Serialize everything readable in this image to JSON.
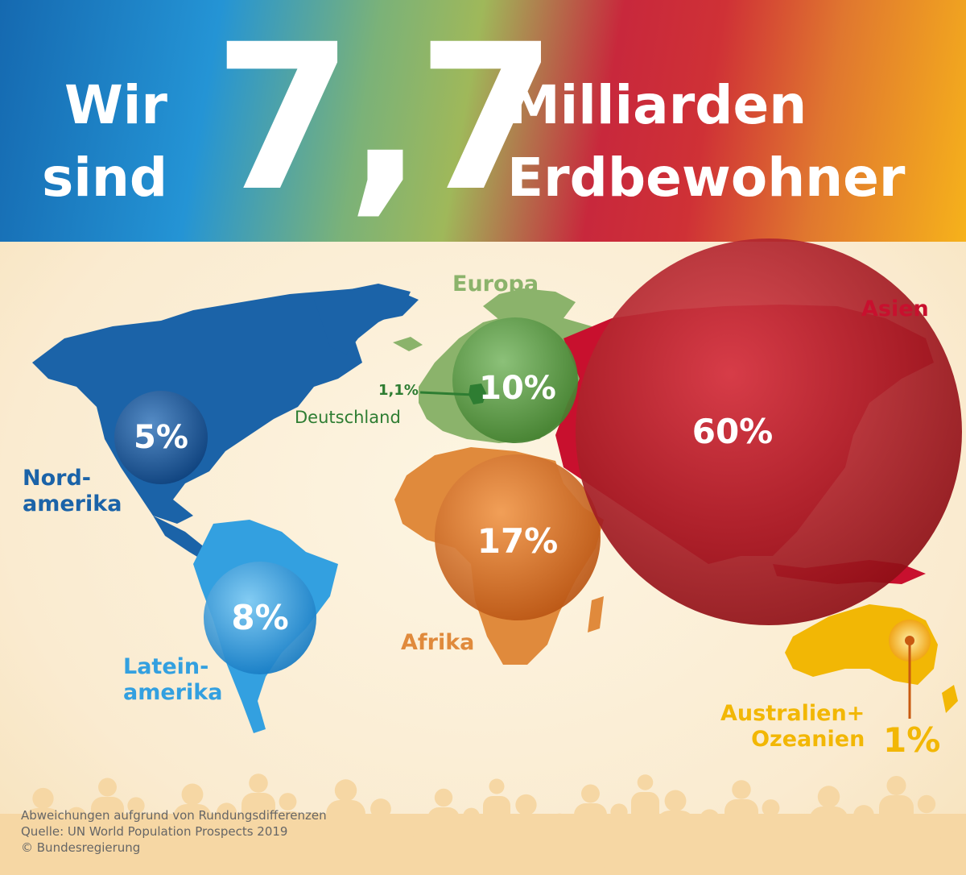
{
  "header": {
    "line1_left": "Wir",
    "line2_left": "sind",
    "big_number": "7,7",
    "line1_right": "Milliarden",
    "line2_right": "Erdbewohner"
  },
  "regions": {
    "nordamerika": {
      "label_line1": "Nord-",
      "label_line2": "amerika",
      "percent": "5%",
      "color": "#1b63a8"
    },
    "lateinamerika": {
      "label_line1": "Latein-",
      "label_line2": "amerika",
      "percent": "8%",
      "color": "#33a0e0"
    },
    "europa": {
      "label": "Europa",
      "percent": "10%",
      "color": "#8bb36b"
    },
    "deutschland": {
      "value": "1,1%",
      "label": "Deutschland",
      "color": "#2e7d32"
    },
    "afrika": {
      "label": "Afrika",
      "percent": "17%",
      "color": "#e08a3c"
    },
    "asien": {
      "label": "Asien",
      "percent": "60%",
      "color": "#c8102e"
    },
    "ozeanien": {
      "label_line1": "Australien+",
      "label_line2": "Ozeanien",
      "percent": "1%",
      "color": "#f2b705"
    }
  },
  "footer": {
    "line1": "Abweichungen aufgrund von Rundungsdifferenzen",
    "line2": "Quelle: UN World Population Prospects 2019",
    "line3": "© Bundesregierung"
  }
}
